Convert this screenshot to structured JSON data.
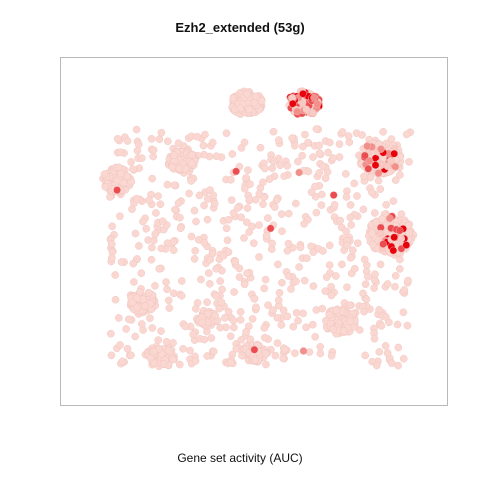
{
  "chart": {
    "title": "Ezh2_extended (53g)",
    "xlabel": "Gene set activity (AUC)"
  },
  "chart_data": {
    "type": "scatter",
    "title": "Ezh2_extended (53g)",
    "xlabel": "Gene set activity (AUC)",
    "ylabel": "",
    "xlim": [
      0,
      100
    ],
    "ylim": [
      0,
      100
    ],
    "grid": false,
    "colors": {
      "low": "#fbd7d1",
      "high": "#e8000b",
      "edge": "#eec2bd"
    },
    "clusters": [
      {
        "id": "c1",
        "x": 48,
        "y": 90,
        "rx": 4.5,
        "ry": 3.8,
        "n": 140,
        "high_frac": 0.0
      },
      {
        "id": "c2",
        "x": 64,
        "y": 90,
        "rx": 4.5,
        "ry": 3.8,
        "n": 120,
        "high_frac": 0.55
      },
      {
        "id": "c3",
        "x": 30,
        "y": 72,
        "rx": 3.8,
        "ry": 3.3,
        "n": 90,
        "high_frac": 0.0
      },
      {
        "id": "c4",
        "x": 85,
        "y": 73,
        "rx": 6.0,
        "ry": 5.0,
        "n": 170,
        "high_frac": 0.18
      },
      {
        "id": "c5",
        "x": 12,
        "y": 66,
        "rx": 4.0,
        "ry": 4.0,
        "n": 90,
        "high_frac": 0.0
      },
      {
        "id": "c6",
        "x": 88,
        "y": 49,
        "rx": 6.5,
        "ry": 5.8,
        "n": 190,
        "high_frac": 0.12
      },
      {
        "id": "c7",
        "x": 19,
        "y": 28,
        "rx": 3.8,
        "ry": 3.3,
        "n": 70,
        "high_frac": 0.0
      },
      {
        "id": "c8",
        "x": 74,
        "y": 22,
        "rx": 4.5,
        "ry": 4.0,
        "n": 90,
        "high_frac": 0.0
      },
      {
        "id": "c9",
        "x": 24,
        "y": 11,
        "rx": 4.0,
        "ry": 3.3,
        "n": 70,
        "high_frac": 0.0
      },
      {
        "id": "c10",
        "x": 50,
        "y": 12,
        "rx": 3.5,
        "ry": 3.0,
        "n": 50,
        "high_frac": 0.0
      },
      {
        "id": "c11",
        "x": 37,
        "y": 23,
        "rx": 3.0,
        "ry": 2.5,
        "n": 40,
        "high_frac": 0.0
      }
    ],
    "scatter_region": {
      "x": [
        10,
        94
      ],
      "y": [
        8,
        82
      ],
      "n": 650,
      "high_frac": 0.012
    }
  }
}
